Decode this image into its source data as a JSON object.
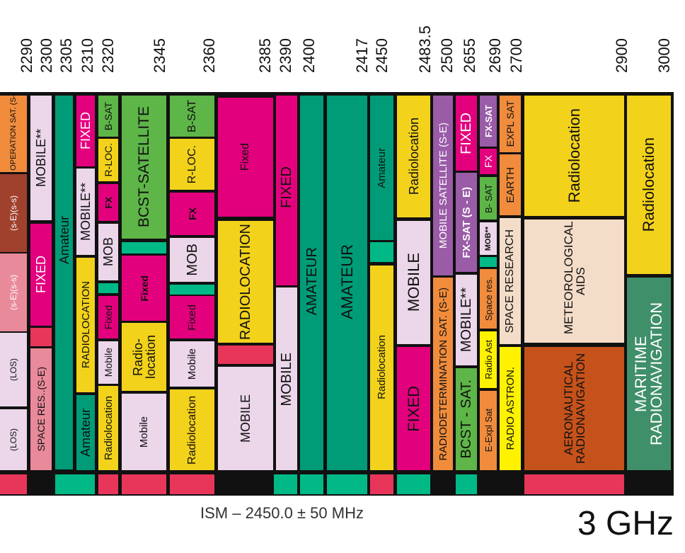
{
  "frequency_labels": [
    "2290",
    "2300",
    "2305",
    "2310",
    "2320",
    "2345",
    "2360",
    "2385",
    "2390",
    "2400",
    "2417",
    "2450",
    "2483.5",
    "2500",
    "2655",
    "2690",
    "2700",
    "2900",
    "3000"
  ],
  "ism_note": "ISM – 2450.0 ± 50 MHz",
  "band_label": "3 GHz",
  "colors": {
    "fixed": "#e3007d",
    "mobile": "#ebd6ea",
    "amateur": "#009c77",
    "radiolocation": "#f2d21b",
    "bsat": "#5eb548",
    "space": "#f08c3c",
    "radioastro": "#fff200",
    "aero": "#c6521b",
    "maritime": "#3f8f6a",
    "meteo": "#f3dcc8",
    "mss": "#9a5ba7",
    "brown": "#a0412e",
    "pink": "#e88a9a",
    "red": "#e8365a",
    "teal": "#00b987"
  },
  "blocks": {
    "c1_top": "SPACE OPERATION SAT. (S-E)(S-S)",
    "c1_a": "(s-E)(s-s)",
    "c1_b": "(s-E)(s-s)",
    "c1_c": "(LOS)",
    "c1_d": "(LOS)",
    "c2_a": "MOBILE**",
    "c2_b": "FIXED",
    "c2_c": "SPACE RES..(S-E)",
    "c3_a": "Amateur",
    "c4_a": "FIXED",
    "c4_b": "MOBILE**",
    "c4_c": "RADIOLOCATION",
    "c4_d": "Amateur",
    "c5_a": "B-SAT",
    "c5_b": "R-LOC.",
    "c5_c": "FX",
    "c5_d": "MOB",
    "c5_e": "Fixed",
    "c5_f": "Mobile",
    "c5_g": "Radiolocation",
    "c6_a": "BCST-SATELLITE",
    "c6_b": "Fixed",
    "c6_c": "Radio-location",
    "c6_d": "Mobile",
    "c7_a": "B-SAT",
    "c7_b": "R-LOC.",
    "c7_c": "FX",
    "c7_d": "MOB",
    "c7_e": "Fixed",
    "c7_f": "Mobile",
    "c7_g": "Radiolocation",
    "c8_a": "Fixed",
    "c8_b": "RADIOLOCATION",
    "c8_c": "MOBILE",
    "c9_a": "FIXED",
    "c9_b": "MOBILE",
    "c10_a": "AMATEUR",
    "c11_a": "AMATEUR",
    "c12_a": "Amateur",
    "c12_b": "Radiolocation",
    "c13_a": "Radiolocation",
    "c13_b": "MOBILE",
    "c13_c": "FIXED",
    "c14_a": "MOBILE SATELLITE (S-E)",
    "c14_b": "RADIODETERMINATION SAT. (S-E)",
    "c15_a": "FIXED",
    "c15_b": "FX-SAT (S - E)",
    "c15_c": "MOBILE**",
    "c15_d": "BCST - SAT.",
    "c16_a": "FX-SAT",
    "c16_b": "FX",
    "c16_c": "B- SAT",
    "c16_d": "MOB**",
    "c16_e": "Space res.",
    "c16_f": "Radio Ast",
    "c16_g": "E-Expl Sat",
    "c17_a": "EXPL SAT",
    "c17_b": "EARTH",
    "c17_c": "SPACE RESEARCH",
    "c17_d": "RADIO ASTRON.",
    "c18_a": "Radiolocation",
    "c18_b": "METEOROLOGICAL AIDS",
    "c18_c": "AERONAUTICAL RADIONAVIGATION",
    "c19_a": "Radiolocation",
    "c19_b": "MARITIME RADIONAVIGATION"
  }
}
